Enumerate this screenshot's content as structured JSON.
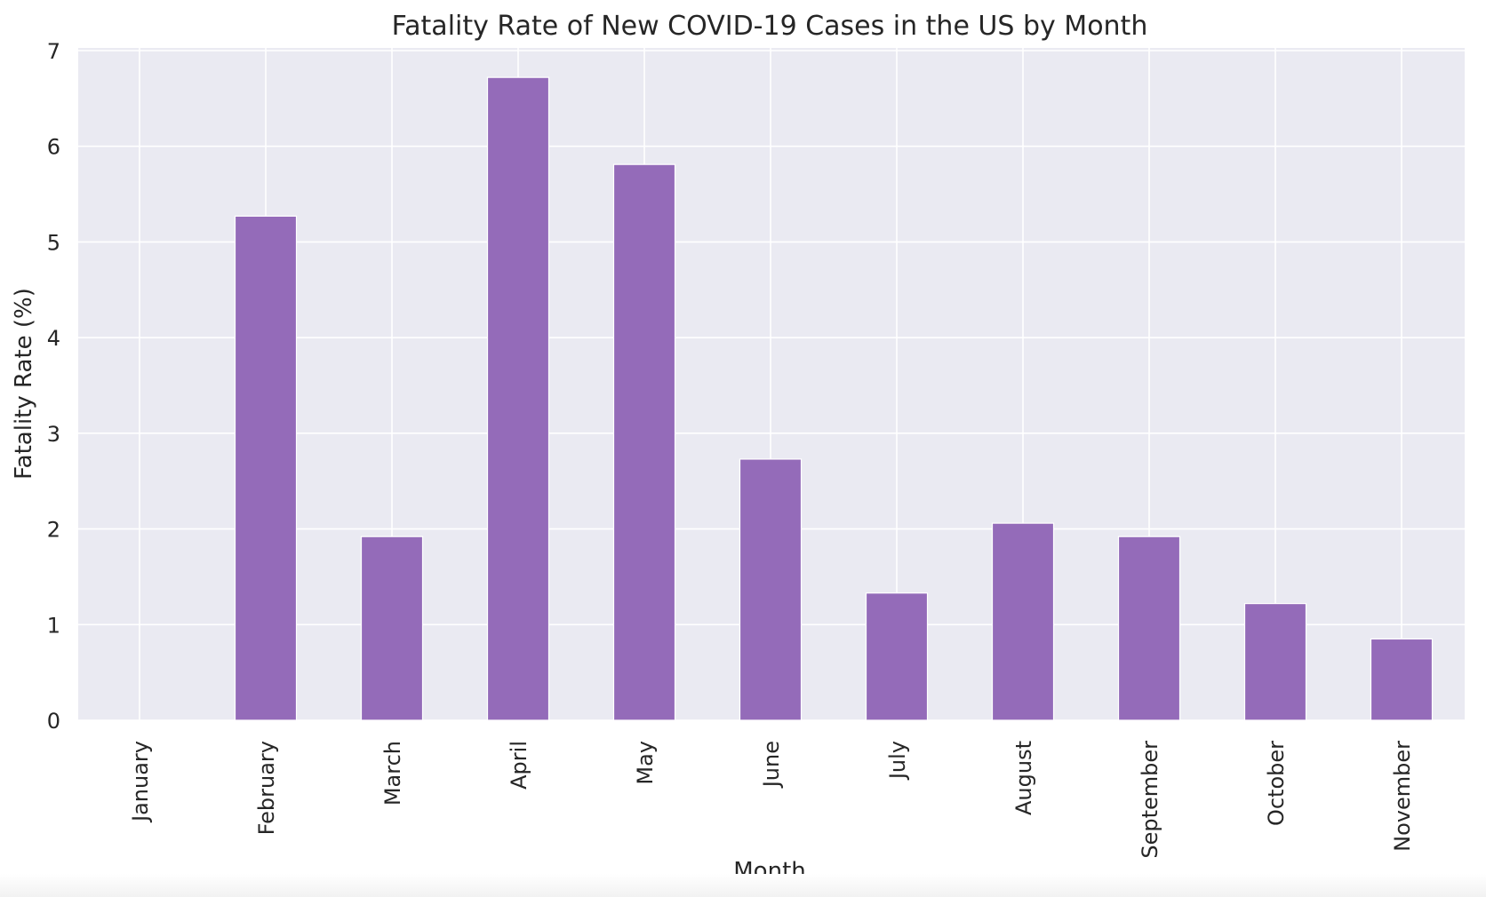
{
  "chart_data": {
    "type": "bar",
    "title": "Fatality Rate of New COVID-19 Cases in the US by Month",
    "xlabel": "Month",
    "ylabel": "Fatality Rate (%)",
    "categories": [
      "January",
      "February",
      "March",
      "April",
      "May",
      "June",
      "July",
      "August",
      "September",
      "October",
      "November"
    ],
    "values": [
      0,
      5.27,
      1.92,
      6.72,
      5.81,
      2.73,
      1.33,
      2.06,
      1.92,
      1.22,
      0.85
    ],
    "ylim": [
      0,
      7
    ],
    "yticks": [
      0,
      1,
      2,
      3,
      4,
      5,
      6,
      7
    ],
    "grid": true,
    "colors": {
      "bar": "#946bb9",
      "plot_background": "#eaeaf2",
      "grid": "#ffffff",
      "text": "#262626"
    }
  }
}
